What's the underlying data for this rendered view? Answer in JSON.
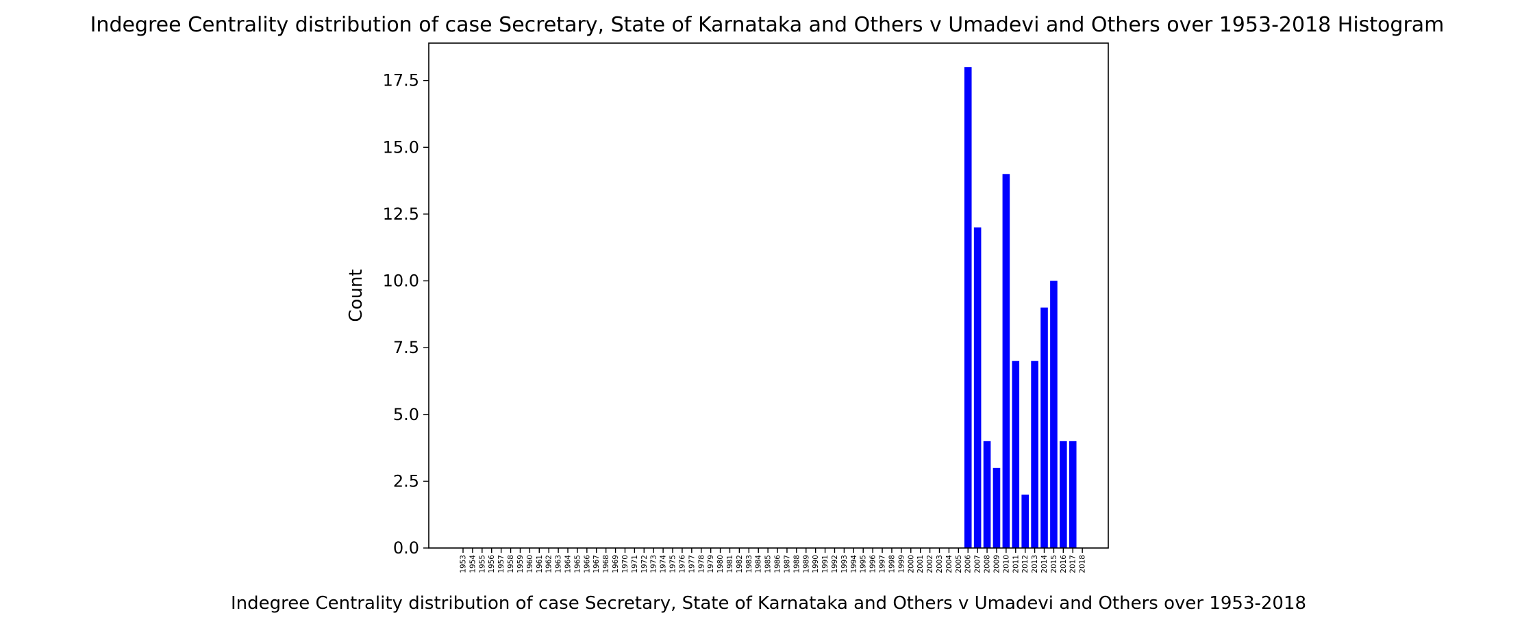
{
  "chart_data": {
    "type": "bar",
    "title": "Indegree Centrality distribution of case Secretary, State of Karnataka and Others v Umadevi and Others over 1953-2018 Histogram",
    "xlabel": "Indegree Centrality distribution of case Secretary, State of Karnataka and Others v Umadevi and Others over 1953-2018",
    "ylabel": "Count",
    "ylim": [
      0,
      18.9
    ],
    "yticks": [
      "0.0",
      "2.5",
      "5.0",
      "7.5",
      "10.0",
      "12.5",
      "15.0",
      "17.5"
    ],
    "grid": false,
    "bar_color": "#0000ff",
    "categories": [
      "1953",
      "1954",
      "1955",
      "1956",
      "1957",
      "1958",
      "1959",
      "1960",
      "1961",
      "1962",
      "1963",
      "1964",
      "1965",
      "1966",
      "1967",
      "1968",
      "1969",
      "1970",
      "1971",
      "1972",
      "1973",
      "1974",
      "1975",
      "1976",
      "1977",
      "1978",
      "1979",
      "1980",
      "1981",
      "1982",
      "1983",
      "1984",
      "1985",
      "1986",
      "1987",
      "1988",
      "1989",
      "1990",
      "1991",
      "1992",
      "1993",
      "1994",
      "1995",
      "1996",
      "1997",
      "1998",
      "1999",
      "2000",
      "2001",
      "2002",
      "2003",
      "2004",
      "2005",
      "2006",
      "2007",
      "2008",
      "2009",
      "2010",
      "2011",
      "2012",
      "2013",
      "2014",
      "2015",
      "2016",
      "2017",
      "2018"
    ],
    "values": [
      0,
      0,
      0,
      0,
      0,
      0,
      0,
      0,
      0,
      0,
      0,
      0,
      0,
      0,
      0,
      0,
      0,
      0,
      0,
      0,
      0,
      0,
      0,
      0,
      0,
      0,
      0,
      0,
      0,
      0,
      0,
      0,
      0,
      0,
      0,
      0,
      0,
      0,
      0,
      0,
      0,
      0,
      0,
      0,
      0,
      0,
      0,
      0,
      0,
      0,
      0,
      0,
      0,
      18,
      12,
      4,
      3,
      14,
      7,
      2,
      7,
      9,
      10,
      4,
      4,
      0
    ]
  }
}
